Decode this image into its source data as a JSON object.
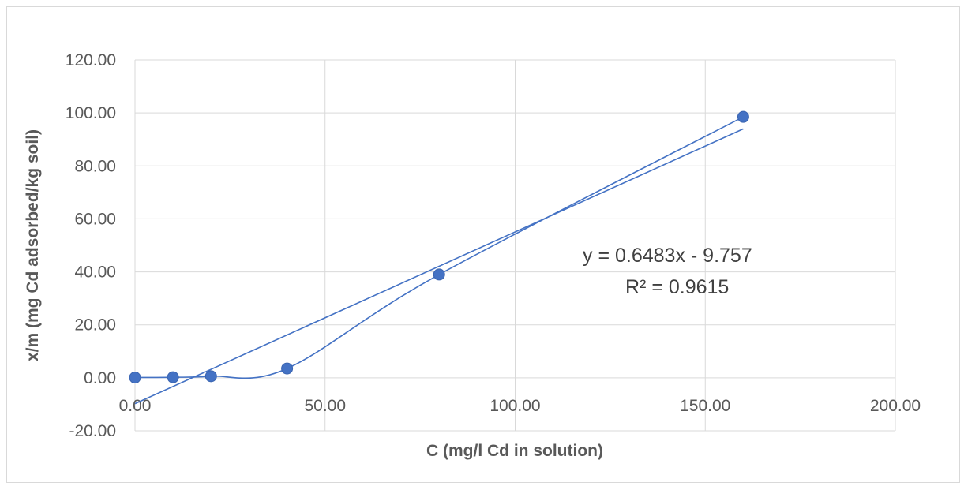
{
  "chart_data": {
    "type": "scatter",
    "title": "",
    "xlabel": "C (mg/l Cd in solution)",
    "ylabel": "x/m (mg  Cd adsorbed/kg soil)",
    "xlim": [
      0,
      200
    ],
    "ylim": [
      -20,
      120
    ],
    "x_ticks": [
      "0.00",
      "50.00",
      "100.00",
      "150.00",
      "200.00"
    ],
    "y_ticks": [
      "-20.00",
      "0.00",
      "20.00",
      "40.00",
      "60.00",
      "80.00",
      "100.00",
      "120.00"
    ],
    "x_tick_values": [
      0,
      50,
      100,
      150,
      200
    ],
    "y_tick_values": [
      -20,
      0,
      20,
      40,
      60,
      80,
      100,
      120
    ],
    "grid": true,
    "series": [
      {
        "x": [
          0,
          10,
          20,
          40,
          80,
          160
        ],
        "y": [
          0.1,
          0.2,
          0.6,
          3.5,
          39,
          98.5
        ],
        "color": "#4472c4",
        "smooth_line": true
      }
    ],
    "trendline": {
      "type": "linear",
      "slope": 0.6483,
      "intercept": -9.757,
      "x_range": [
        0,
        160
      ],
      "color": "#4472c4"
    },
    "annotations": {
      "equation": "y = 0.6483x - 9.757",
      "r_squared": "R² = 0.9615"
    }
  }
}
